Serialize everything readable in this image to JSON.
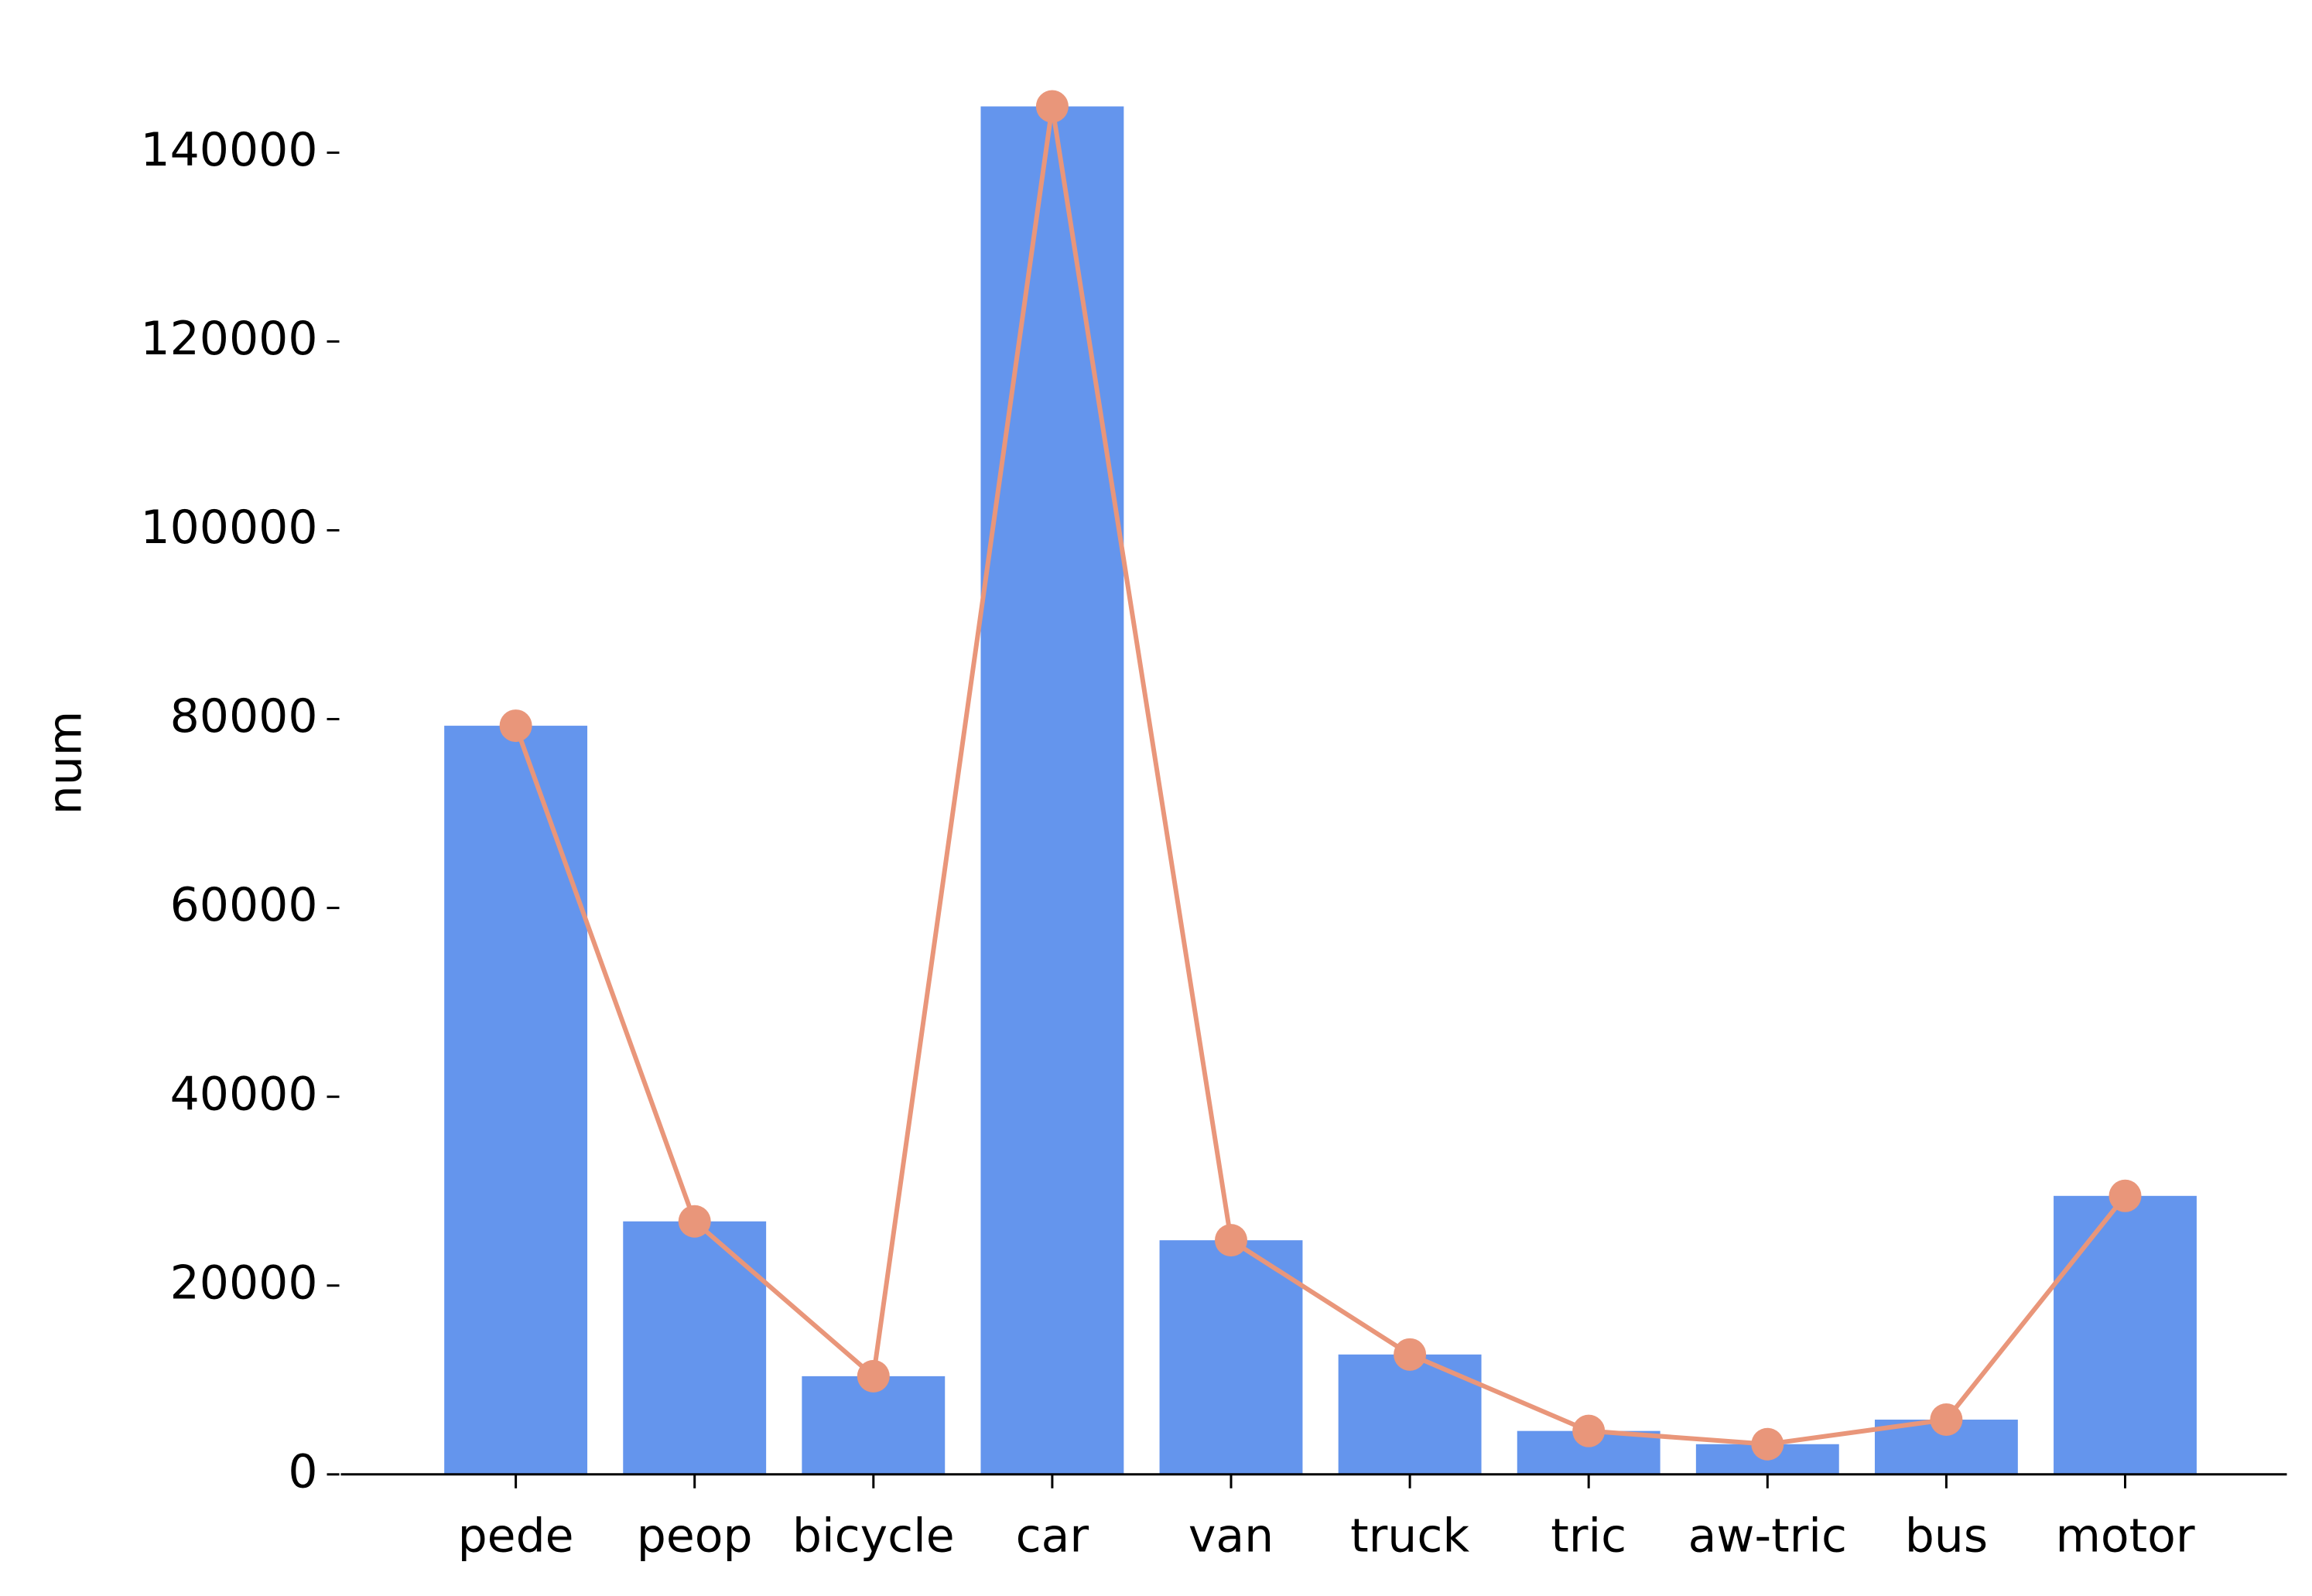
{
  "chart_data": {
    "type": "bar",
    "ylabel": "num",
    "categories": [
      "pede",
      "peop",
      "bicycle",
      "car",
      "van",
      "truck",
      "tric",
      "aw-tric",
      "bus",
      "motor"
    ],
    "series": [
      {
        "type": "bar",
        "color": "#6495ed",
        "values": [
          79300,
          26800,
          10400,
          144900,
          24800,
          12700,
          4600,
          3200,
          5800,
          29500
        ]
      },
      {
        "type": "line",
        "color": "#e9967a",
        "values": [
          79300,
          26800,
          10400,
          144900,
          24800,
          12700,
          4600,
          3200,
          5800,
          29500
        ]
      }
    ],
    "ylim": [
      0,
      152000
    ],
    "yticks": [
      0,
      20000,
      40000,
      60000,
      80000,
      100000,
      120000,
      140000
    ],
    "grid": false
  }
}
